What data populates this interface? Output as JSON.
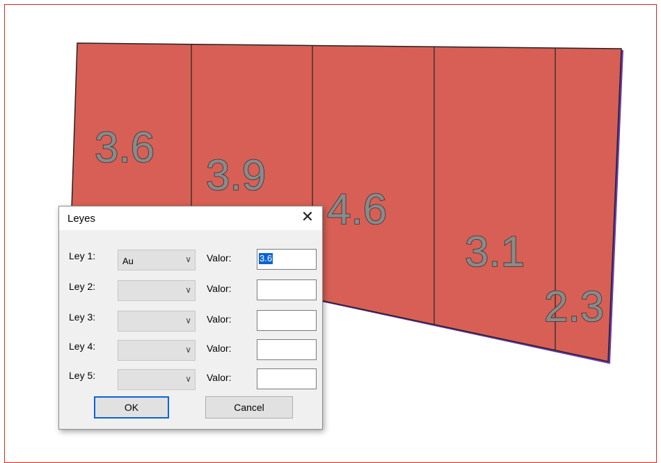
{
  "section": {
    "fill_color": "#d75f55",
    "edge_color": "#6a3bb0",
    "block_values": [
      "3.6",
      "3.9",
      "4.6",
      "3.1",
      "2.3"
    ]
  },
  "dialog": {
    "title": "Leyes",
    "close_glyph": "✕",
    "rows": [
      {
        "label": "Ley 1:",
        "combo_value": "Au",
        "valor_label": "Valor:",
        "valor_value": "3.6"
      },
      {
        "label": "Ley 2:",
        "combo_value": "",
        "valor_label": "Valor:",
        "valor_value": ""
      },
      {
        "label": "Ley 3:",
        "combo_value": "",
        "valor_label": "Valor:",
        "valor_value": ""
      },
      {
        "label": "Ley 4:",
        "combo_value": "",
        "valor_label": "Valor:",
        "valor_value": ""
      },
      {
        "label": "Ley 5:",
        "combo_value": "",
        "valor_label": "Valor:",
        "valor_value": ""
      }
    ],
    "ok_label": "OK",
    "cancel_label": "Cancel",
    "chevron_glyph": "∨"
  }
}
